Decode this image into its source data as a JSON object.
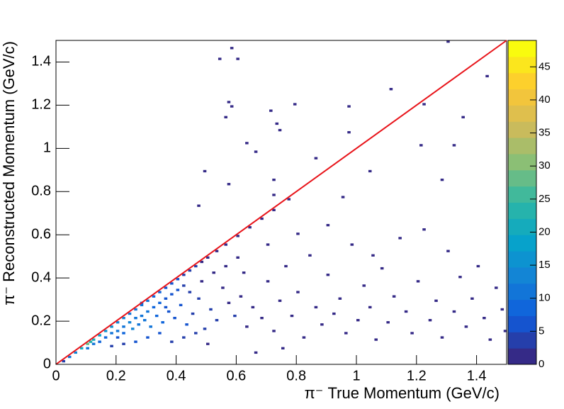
{
  "chart_data": {
    "type": "hist2d",
    "x_label": "π⁻ True Momentum (GeV/c)",
    "y_label": "π⁻ Reconstructed Momentum (GeV/c)",
    "xlim": [
      0,
      1.5
    ],
    "ylim": [
      0,
      1.5
    ],
    "xticks": [
      0,
      0.2,
      0.4,
      0.6,
      0.8,
      1,
      1.2,
      1.4
    ],
    "yticks": [
      0,
      0.2,
      0.4,
      0.6,
      0.8,
      1,
      1.2,
      1.4
    ],
    "zlim": [
      0,
      49
    ],
    "zticks": [
      0,
      5,
      10,
      15,
      20,
      25,
      30,
      35,
      40,
      45
    ],
    "palette": [
      "#352a87",
      "#0f5cdd",
      "#1481d6",
      "#06a4ca",
      "#2eb7a4",
      "#87bf77",
      "#d1bb59",
      "#fec832",
      "#f9fb0e"
    ],
    "reference_line": {
      "x": [
        0,
        1.5
      ],
      "y": [
        0,
        1.5
      ],
      "color": "#e8141a"
    },
    "cells": [
      [
        0.02,
        0.01,
        3
      ],
      [
        0.04,
        0.03,
        10
      ],
      [
        0.06,
        0.05,
        14
      ],
      [
        0.08,
        0.07,
        20
      ],
      [
        0.1,
        0.09,
        28
      ],
      [
        0.11,
        0.1,
        24
      ],
      [
        0.12,
        0.11,
        22
      ],
      [
        0.14,
        0.13,
        18
      ],
      [
        0.16,
        0.15,
        16
      ],
      [
        0.18,
        0.17,
        15
      ],
      [
        0.2,
        0.19,
        14
      ],
      [
        0.22,
        0.21,
        13
      ],
      [
        0.24,
        0.23,
        12
      ],
      [
        0.26,
        0.25,
        12
      ],
      [
        0.28,
        0.27,
        11
      ],
      [
        0.3,
        0.29,
        10
      ],
      [
        0.32,
        0.31,
        9
      ],
      [
        0.34,
        0.33,
        8
      ],
      [
        0.36,
        0.35,
        7
      ],
      [
        0.38,
        0.37,
        6
      ],
      [
        0.4,
        0.39,
        5
      ],
      [
        0.42,
        0.41,
        4
      ],
      [
        0.44,
        0.43,
        3
      ],
      [
        0.46,
        0.45,
        3
      ],
      [
        0.48,
        0.47,
        2
      ],
      [
        0.5,
        0.49,
        2
      ],
      [
        0.53,
        0.52,
        2
      ],
      [
        0.56,
        0.55,
        1
      ],
      [
        0.6,
        0.59,
        1
      ],
      [
        0.64,
        0.63,
        1
      ],
      [
        0.68,
        0.67,
        1
      ],
      [
        0.72,
        0.71,
        1
      ],
      [
        0.77,
        0.76,
        1
      ],
      [
        0.1,
        0.07,
        12
      ],
      [
        0.12,
        0.09,
        10
      ],
      [
        0.14,
        0.1,
        8
      ],
      [
        0.16,
        0.12,
        9
      ],
      [
        0.18,
        0.14,
        10
      ],
      [
        0.2,
        0.15,
        11
      ],
      [
        0.22,
        0.17,
        12
      ],
      [
        0.24,
        0.19,
        13
      ],
      [
        0.26,
        0.21,
        12
      ],
      [
        0.28,
        0.22,
        11
      ],
      [
        0.3,
        0.24,
        10
      ],
      [
        0.32,
        0.26,
        9
      ],
      [
        0.34,
        0.28,
        8
      ],
      [
        0.36,
        0.3,
        7
      ],
      [
        0.38,
        0.32,
        6
      ],
      [
        0.4,
        0.34,
        5
      ],
      [
        0.42,
        0.36,
        4
      ],
      [
        0.2,
        0.12,
        6
      ],
      [
        0.22,
        0.14,
        8
      ],
      [
        0.25,
        0.16,
        14
      ],
      [
        0.27,
        0.18,
        12
      ],
      [
        0.29,
        0.2,
        10
      ],
      [
        0.31,
        0.17,
        11
      ],
      [
        0.33,
        0.22,
        9
      ],
      [
        0.35,
        0.19,
        8
      ],
      [
        0.37,
        0.24,
        7
      ],
      [
        0.39,
        0.21,
        6
      ],
      [
        0.41,
        0.27,
        5
      ],
      [
        0.43,
        0.18,
        5
      ],
      [
        0.45,
        0.23,
        4
      ],
      [
        0.47,
        0.3,
        3
      ],
      [
        0.49,
        0.16,
        4
      ],
      [
        0.51,
        0.25,
        3
      ],
      [
        0.53,
        0.2,
        3
      ],
      [
        0.55,
        0.35,
        2
      ],
      [
        0.57,
        0.28,
        2
      ],
      [
        0.59,
        0.22,
        3
      ],
      [
        0.61,
        0.31,
        2
      ],
      [
        0.63,
        0.17,
        2
      ],
      [
        0.65,
        0.26,
        2
      ],
      [
        0.3,
        0.12,
        6
      ],
      [
        0.34,
        0.14,
        5
      ],
      [
        0.38,
        0.1,
        4
      ],
      [
        0.42,
        0.12,
        3
      ],
      [
        0.26,
        0.1,
        5
      ],
      [
        0.22,
        0.09,
        4
      ],
      [
        0.18,
        0.08,
        4
      ],
      [
        0.46,
        0.14,
        3
      ],
      [
        0.5,
        0.09,
        2
      ],
      [
        0.28,
        0.28,
        8
      ],
      [
        0.36,
        0.26,
        6
      ],
      [
        0.44,
        0.33,
        3
      ],
      [
        0.48,
        0.38,
        2
      ],
      [
        0.52,
        0.42,
        2
      ],
      [
        0.56,
        0.45,
        1
      ],
      [
        0.6,
        0.49,
        1
      ],
      [
        0.68,
        0.21,
        1
      ],
      [
        0.7,
        0.38,
        1
      ],
      [
        0.72,
        0.15,
        1
      ],
      [
        0.74,
        0.29,
        1
      ],
      [
        0.76,
        0.45,
        1
      ],
      [
        0.78,
        0.22,
        1
      ],
      [
        0.8,
        0.33,
        1
      ],
      [
        0.82,
        0.12,
        1
      ],
      [
        0.84,
        0.5,
        1
      ],
      [
        0.86,
        0.26,
        1
      ],
      [
        0.88,
        0.18,
        1
      ],
      [
        0.9,
        0.41,
        1
      ],
      [
        0.92,
        0.23,
        1
      ],
      [
        0.94,
        0.3,
        1
      ],
      [
        0.96,
        0.14,
        1
      ],
      [
        0.98,
        0.55,
        1
      ],
      [
        1.0,
        0.2,
        1
      ],
      [
        1.02,
        0.36,
        1
      ],
      [
        1.04,
        0.26,
        1
      ],
      [
        1.06,
        0.11,
        1
      ],
      [
        1.08,
        0.44,
        1
      ],
      [
        1.1,
        0.19,
        1
      ],
      [
        1.12,
        0.31,
        1
      ],
      [
        1.14,
        0.58,
        1
      ],
      [
        1.16,
        0.24,
        1
      ],
      [
        1.18,
        0.14,
        1
      ],
      [
        1.2,
        0.38,
        1
      ],
      [
        1.22,
        0.62,
        1
      ],
      [
        1.24,
        0.2,
        1
      ],
      [
        1.26,
        0.29,
        1
      ],
      [
        1.28,
        0.12,
        1
      ],
      [
        1.3,
        0.52,
        1
      ],
      [
        1.32,
        0.24,
        1
      ],
      [
        1.34,
        0.4,
        1
      ],
      [
        1.36,
        0.17,
        1
      ],
      [
        1.38,
        0.3,
        1
      ],
      [
        1.4,
        0.45,
        1
      ],
      [
        1.42,
        0.21,
        1
      ],
      [
        1.44,
        0.11,
        1
      ],
      [
        1.46,
        0.35,
        1
      ],
      [
        1.48,
        0.25,
        1
      ],
      [
        1.49,
        0.15,
        1
      ],
      [
        0.8,
        0.6,
        1
      ],
      [
        0.9,
        0.64,
        1
      ],
      [
        0.7,
        0.55,
        1
      ],
      [
        1.05,
        0.5,
        1
      ],
      [
        0.62,
        0.42,
        1
      ],
      [
        0.75,
        0.07,
        1
      ],
      [
        0.66,
        0.05,
        1
      ],
      [
        0.58,
        1.46,
        1
      ],
      [
        0.54,
        1.41,
        1
      ],
      [
        0.6,
        1.41,
        1
      ],
      [
        1.3,
        1.49,
        1
      ],
      [
        1.43,
        1.33,
        1
      ],
      [
        1.11,
        1.27,
        1
      ],
      [
        0.57,
        1.21,
        1
      ],
      [
        0.58,
        1.19,
        1
      ],
      [
        0.71,
        1.17,
        1
      ],
      [
        0.79,
        1.2,
        1
      ],
      [
        0.97,
        1.19,
        1
      ],
      [
        1.22,
        1.2,
        1
      ],
      [
        0.56,
        1.14,
        1
      ],
      [
        0.73,
        1.11,
        1
      ],
      [
        0.74,
        1.08,
        1
      ],
      [
        1.35,
        1.14,
        1
      ],
      [
        0.97,
        1.07,
        1
      ],
      [
        0.63,
        1.02,
        1
      ],
      [
        0.66,
        0.98,
        1
      ],
      [
        0.86,
        0.95,
        1
      ],
      [
        0.49,
        0.89,
        1
      ],
      [
        1.04,
        0.89,
        1
      ],
      [
        0.57,
        0.83,
        1
      ],
      [
        0.72,
        0.85,
        1
      ],
      [
        0.72,
        0.78,
        1
      ],
      [
        1.28,
        0.85,
        1
      ],
      [
        1.21,
        1.01,
        1
      ],
      [
        1.32,
        1.01,
        1
      ],
      [
        0.47,
        0.73,
        1
      ],
      [
        0.95,
        0.77,
        1
      ]
    ]
  }
}
